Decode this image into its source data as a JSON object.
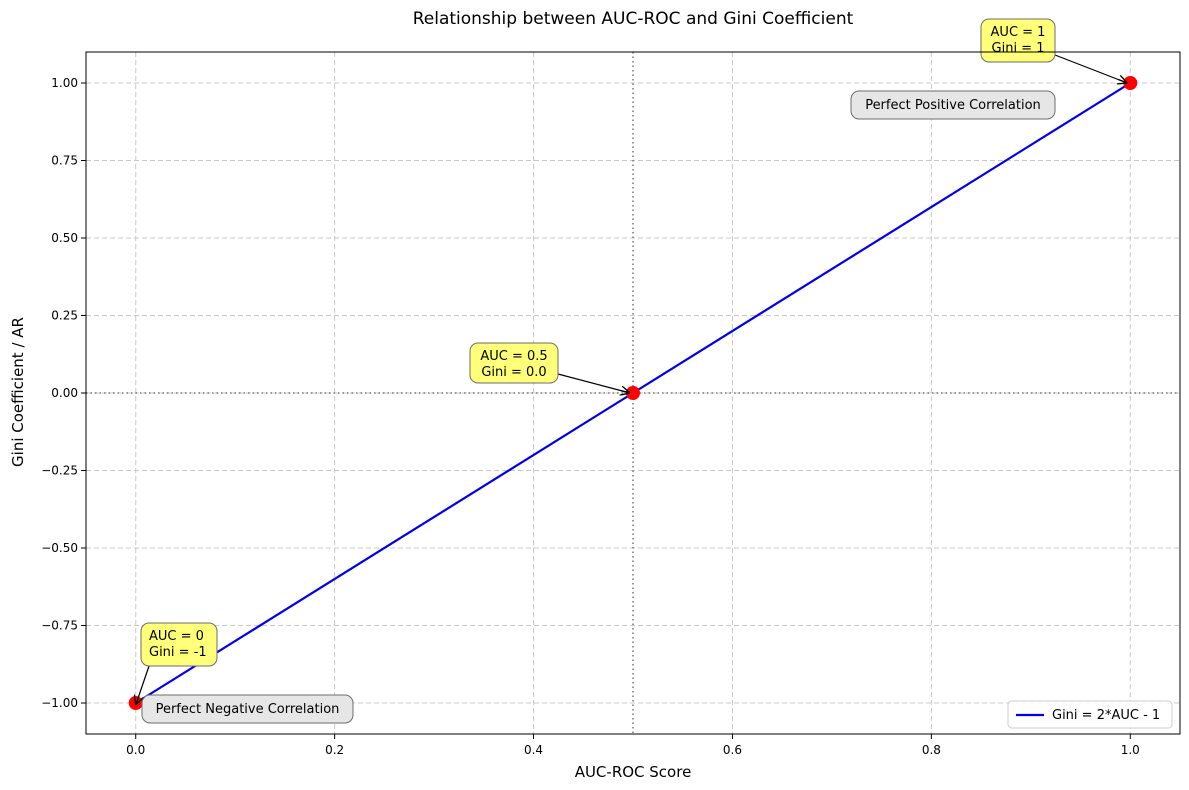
{
  "chart_data": {
    "type": "line",
    "title": "Relationship between AUC-ROC and Gini Coefficient",
    "xlabel": "AUC-ROC Score",
    "ylabel": "Gini Coefficient / AR",
    "xlim": [
      -0.05,
      1.05
    ],
    "ylim": [
      -1.1,
      1.1
    ],
    "x_ticks": [
      0.0,
      0.2,
      0.4,
      0.6,
      0.8,
      1.0
    ],
    "x_tick_labels": [
      "0.0",
      "0.2",
      "0.4",
      "0.6",
      "0.8",
      "1.0"
    ],
    "y_ticks": [
      -1.0,
      -0.75,
      -0.5,
      -0.25,
      0.0,
      0.25,
      0.5,
      0.75,
      1.0
    ],
    "y_tick_labels": [
      "−1.00",
      "−0.75",
      "−0.50",
      "−0.25",
      "0.00",
      "0.25",
      "0.50",
      "0.75",
      "1.00"
    ],
    "grid": true,
    "reference_lines": {
      "vertical_x": 0.5,
      "horizontal_y": 0.0
    },
    "series": [
      {
        "name": "Gini = 2*AUC - 1",
        "color": "#0000ee",
        "x": [
          0.0,
          1.0
        ],
        "y": [
          -1.0,
          1.0
        ]
      }
    ],
    "highlight_points": {
      "color": "#ff0000",
      "points": [
        {
          "x": 0.0,
          "y": -1.0
        },
        {
          "x": 0.5,
          "y": 0.0
        },
        {
          "x": 1.0,
          "y": 1.0
        }
      ]
    },
    "point_annotations": [
      {
        "lines": [
          "AUC = 0",
          "Gini = -1"
        ],
        "x": 0.0,
        "y": -1.0,
        "align": "start"
      },
      {
        "lines": [
          "AUC = 0.5",
          "Gini = 0.0"
        ],
        "x": 0.5,
        "y": 0.0,
        "align": "end"
      },
      {
        "lines": [
          "AUC = 1",
          "Gini = 1"
        ],
        "x": 1.0,
        "y": 1.0,
        "align": "end"
      }
    ],
    "region_annotations": [
      {
        "text": "Perfect Positive Correlation",
        "x": 0.82,
        "y": 0.93
      },
      {
        "text": "Perfect Negative Correlation",
        "x": 0.13,
        "y": -1.025
      }
    ],
    "legend": {
      "position": "lower-right",
      "entries": [
        "Gini = 2*AUC - 1"
      ]
    }
  }
}
